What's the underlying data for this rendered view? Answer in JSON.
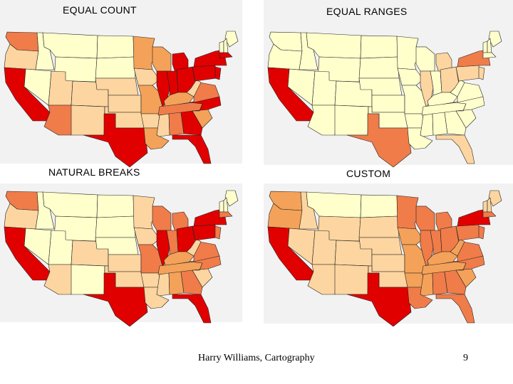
{
  "palette": {
    "class1": "#ffffcc",
    "class2": "#fcd5a0",
    "class3": "#f4a259",
    "class4": "#f07c4a",
    "class5": "#e10000",
    "boundary": "#222222",
    "panel_bg": "#f2f2f2"
  },
  "maps": [
    {
      "title": "EQUAL COUNT",
      "method": "equal-count",
      "state_classes": {
        "WA": 4,
        "OR": 2,
        "CA": 5,
        "NV": 1,
        "ID": 1,
        "MT": 1,
        "WY": 1,
        "UT": 2,
        "AZ": 4,
        "CO": 2,
        "NM": 2,
        "ND": 1,
        "SD": 1,
        "NE": 2,
        "KS": 2,
        "OK": 2,
        "TX": 5,
        "MN": 3,
        "IA": 2,
        "MO": 3,
        "AR": 2,
        "LA": 3,
        "WI": 3,
        "IL": 5,
        "MI": 5,
        "IN": 5,
        "OH": 5,
        "KY": 3,
        "TN": 4,
        "MS": 2,
        "AL": 4,
        "GA": 5,
        "FL": 5,
        "SC": 3,
        "NC": 5,
        "VA": 4,
        "WV": 2,
        "PA": 5,
        "NY": 5,
        "ME": 1,
        "VT": 1,
        "NH": 1,
        "MA": 5,
        "NJ": 5
      }
    },
    {
      "title": "EQUAL RANGES",
      "method": "equal-ranges",
      "state_classes": {
        "WA": 1,
        "OR": 1,
        "CA": 5,
        "NV": 1,
        "ID": 1,
        "MT": 1,
        "WY": 1,
        "UT": 1,
        "AZ": 1,
        "CO": 1,
        "NM": 1,
        "ND": 1,
        "SD": 1,
        "NE": 1,
        "KS": 1,
        "OK": 1,
        "TX": 4,
        "MN": 1,
        "IA": 1,
        "MO": 1,
        "AR": 1,
        "LA": 1,
        "WI": 1,
        "IL": 2,
        "MI": 2,
        "IN": 1,
        "OH": 2,
        "KY": 1,
        "TN": 1,
        "MS": 1,
        "AL": 1,
        "GA": 1,
        "FL": 2,
        "SC": 1,
        "NC": 1,
        "VA": 1,
        "WV": 1,
        "PA": 2,
        "NY": 4,
        "ME": 1,
        "VT": 1,
        "NH": 1,
        "MA": 1,
        "NJ": 2
      }
    },
    {
      "title": "NATURAL BREAKS",
      "method": "natural-breaks",
      "state_classes": {
        "WA": 4,
        "OR": 2,
        "CA": 5,
        "NV": 1,
        "ID": 1,
        "MT": 1,
        "WY": 1,
        "UT": 1,
        "AZ": 2,
        "CO": 2,
        "NM": 1,
        "ND": 1,
        "SD": 1,
        "NE": 1,
        "KS": 2,
        "OK": 2,
        "TX": 5,
        "MN": 2,
        "IA": 2,
        "MO": 4,
        "AR": 2,
        "LA": 2,
        "WI": 4,
        "IL": 5,
        "MI": 4,
        "IN": 4,
        "OH": 5,
        "KY": 3,
        "TN": 3,
        "MS": 2,
        "AL": 3,
        "GA": 4,
        "FL": 5,
        "SC": 2,
        "NC": 4,
        "VA": 4,
        "WV": 2,
        "PA": 5,
        "NY": 5,
        "ME": 1,
        "VT": 1,
        "NH": 1,
        "MA": 4,
        "NJ": 4
      }
    },
    {
      "title": "CUSTOM",
      "method": "custom",
      "state_classes": {
        "WA": 3,
        "OR": 3,
        "CA": 5,
        "NV": 2,
        "ID": 2,
        "MT": 1,
        "WY": 2,
        "UT": 2,
        "AZ": 2,
        "CO": 2,
        "NM": 2,
        "ND": 1,
        "SD": 2,
        "NE": 2,
        "KS": 2,
        "OK": 2,
        "TX": 5,
        "MN": 4,
        "IA": 3,
        "MO": 3,
        "AR": 3,
        "LA": 4,
        "WI": 4,
        "IL": 4,
        "MI": 4,
        "IN": 4,
        "OH": 4,
        "KY": 3,
        "TN": 3,
        "MS": 3,
        "AL": 4,
        "GA": 4,
        "FL": 4,
        "SC": 3,
        "NC": 4,
        "VA": 4,
        "WV": 3,
        "PA": 4,
        "NY": 5,
        "ME": 2,
        "VT": 2,
        "NH": 2,
        "MA": 4,
        "NJ": 4
      }
    }
  ],
  "footer": {
    "credit": "Harry Williams, Cartography",
    "page_number": "9"
  }
}
